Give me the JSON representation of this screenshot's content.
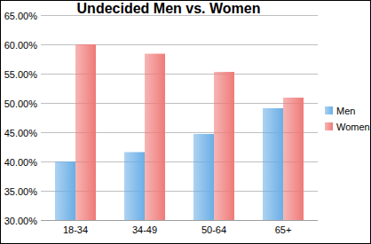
{
  "chart_data": {
    "type": "bar",
    "title": "Undecided Men vs. Women",
    "categories": [
      "18-34",
      "34-49",
      "50-64",
      "65+"
    ],
    "series": [
      {
        "name": "Men",
        "color": "#6aaee6",
        "values": [
          40.0,
          41.6,
          44.7,
          49.1
        ]
      },
      {
        "name": "Women",
        "color": "#ef7a78",
        "values": [
          60.0,
          58.4,
          55.3,
          50.9
        ]
      }
    ],
    "ylim": [
      30,
      65
    ],
    "yticks": [
      {
        "value": 30,
        "label": "30.00%"
      },
      {
        "value": 35,
        "label": "35.00%"
      },
      {
        "value": 40,
        "label": "40.00%"
      },
      {
        "value": 45,
        "label": "45.00%"
      },
      {
        "value": 50,
        "label": "50.00%"
      },
      {
        "value": 55,
        "label": "55.00%"
      },
      {
        "value": 60,
        "label": "60.00%"
      },
      {
        "value": 65,
        "label": "65.00%"
      }
    ],
    "grid": true,
    "legend": "right"
  }
}
